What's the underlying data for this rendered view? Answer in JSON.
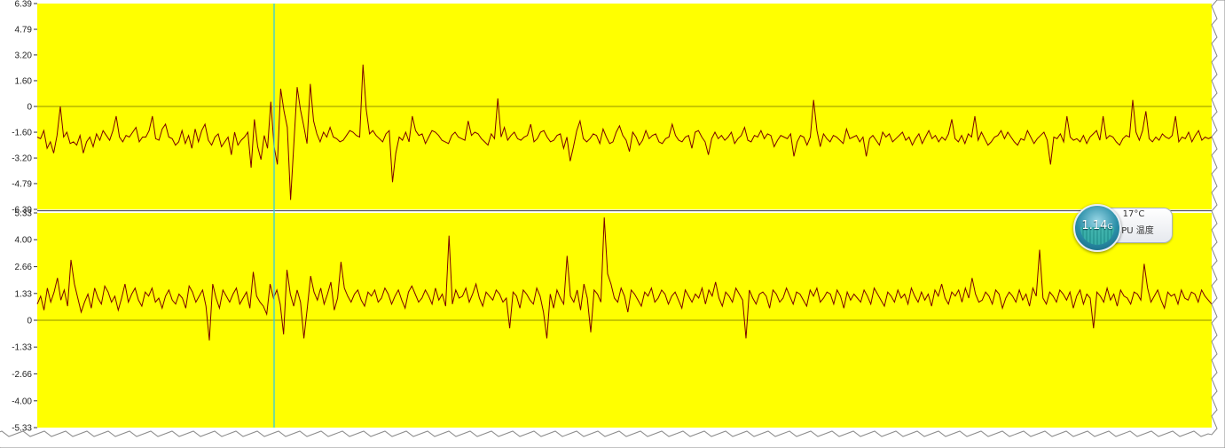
{
  "chart_data": [
    {
      "type": "line",
      "title": "",
      "xlabel": "",
      "ylabel": "",
      "ylim": [
        -6.39,
        6.39
      ],
      "y_ticks": [
        "6.39",
        "4.79",
        "3.20",
        "1.60",
        "0",
        "-1.60",
        "-3.20",
        "-4.79",
        "-6.39"
      ],
      "y_tick_values": [
        6.39,
        4.79,
        3.2,
        1.6,
        0,
        -1.6,
        -3.2,
        -4.79,
        -6.39
      ],
      "background": "#ffff00",
      "line_color": "#7a0000",
      "grid": false,
      "zero_line": true,
      "series": [
        {
          "values": [
            -1.9,
            -2.0,
            -1.5,
            -2.6,
            -2.2,
            -2.9,
            -1.8,
            0,
            -1.9,
            -1.6,
            -2.3,
            -2.2,
            -2.4,
            -1.8,
            -2.9,
            -2.2,
            -1.9,
            -2.5,
            -1.7,
            -2.1,
            -1.5,
            -1.8,
            -2.1,
            -1.5,
            -0.6,
            -1.9,
            -2.2,
            -1.8,
            -1.9,
            -1.6,
            -1.3,
            -2.2,
            -1.9,
            -1.9,
            -1.5,
            -0.6,
            -2.0,
            -2.1,
            -1.4,
            -1.1,
            -1.9,
            -2.0,
            -2.4,
            -2.2,
            -1.5,
            -2.3,
            -1.8,
            -2.6,
            -1.4,
            -2.2,
            -1.5,
            -1.1,
            -2.1,
            -2.4,
            -1.9,
            -1.7,
            -2.5,
            -2.2,
            -1.9,
            -3.0,
            -1.6,
            -2.4,
            -2.1,
            -1.9,
            -1.6,
            -3.8,
            -0.8,
            -2.5,
            -3.3,
            -1.8,
            -2.6,
            0.3,
            -2.5,
            -3.6,
            1.1,
            -0.3,
            -1.3,
            -5.8,
            -2.3,
            1.2,
            -0.2,
            -1.2,
            -2.3,
            1.4,
            -0.9,
            -1.7,
            -2.2,
            -1.6,
            -1.9,
            -1.3,
            -1.9,
            -2.0,
            -2.2,
            -2.1,
            -1.8,
            -1.5,
            -1.6,
            -1.8,
            -1.9,
            2.6,
            -0.2,
            -1.7,
            -1.5,
            -1.8,
            -2.0,
            -2.2,
            -1.7,
            -1.5,
            -4.7,
            -2.9,
            -1.9,
            -2.1,
            -1.6,
            -2.2,
            -0.6,
            -1.5,
            -1.8,
            -1.7,
            -2.3,
            -1.9,
            -1.5,
            -1.6,
            -1.8,
            -2.1,
            -2.2,
            -2.3,
            -1.8,
            -1.6,
            -1.9,
            -2.0,
            -2.1,
            -0.9,
            -1.8,
            -1.6,
            -1.7,
            -2.0,
            -2.2,
            -2.4,
            -1.7,
            -2.0,
            0.5,
            -1.9,
            -1.3,
            -2.1,
            -1.8,
            -1.6,
            -2.0,
            -2.1,
            -1.9,
            -1.8,
            -1.1,
            -2.2,
            -2.0,
            -1.6,
            -1.5,
            -1.9,
            -2.2,
            -2.1,
            -1.8,
            -1.7,
            -2.6,
            -1.9,
            -3.4,
            -2.5,
            -1.5,
            -0.9,
            -2.0,
            -2.2,
            -2.0,
            -1.7,
            -1.8,
            -2.3,
            -1.4,
            -1.9,
            -2.3,
            -2.2,
            -1.6,
            -1.2,
            -1.8,
            -2.1,
            -2.8,
            -1.6,
            -1.9,
            -2.4,
            -2.1,
            -1.5,
            -2.0,
            -1.8,
            -1.7,
            -2.2,
            -2.3,
            -2.0,
            -1.9,
            -1.1,
            -1.8,
            -2.1,
            -2.2,
            -1.9,
            -1.8,
            -2.6,
            -1.6,
            -1.5,
            -1.9,
            -2.2,
            -3.0,
            -2.0,
            -1.6,
            -2.0,
            -1.8,
            -2.1,
            -1.9,
            -1.6,
            -2.3,
            -2.0,
            -1.8,
            -1.3,
            -2.1,
            -2.2,
            -1.8,
            -1.9,
            -1.5,
            -2.0,
            -1.7,
            -1.8,
            -2.5,
            -2.1,
            -1.8,
            -1.9,
            -2.0,
            -1.7,
            -3.1,
            -2.2,
            -1.8,
            -1.9,
            -2.4,
            -1.9,
            0.4,
            -1.5,
            -2.5,
            -1.7,
            -2.0,
            -2.2,
            -1.8,
            -1.9,
            -2.1,
            -2.3,
            -1.4,
            -2.0,
            -1.9,
            -1.8,
            -2.2,
            -1.9,
            -3.1,
            -2.0,
            -1.8,
            -2.1,
            -2.4,
            -1.6,
            -1.9,
            -1.7,
            -2.2,
            -2.0,
            -1.8,
            -1.6,
            -2.1,
            -1.9,
            -2.4,
            -2.0,
            -1.7,
            -2.3,
            -1.9,
            -1.5,
            -2.0,
            -1.8,
            -2.2,
            -1.9,
            -2.1,
            -1.7,
            -0.8,
            -2.0,
            -2.2,
            -1.8,
            -2.3,
            -1.7,
            -1.9,
            -0.6,
            -2.1,
            -1.6,
            -2.0,
            -2.4,
            -2.2,
            -1.9,
            -1.8,
            -1.5,
            -2.0,
            -1.6,
            -1.9,
            -2.2,
            -2.4,
            -2.0,
            -2.1,
            -1.5,
            -1.9,
            -2.3,
            -2.0,
            -1.8,
            -1.6,
            -2.1,
            -3.6,
            -1.9,
            -2.0,
            -1.7,
            -2.2,
            -0.6,
            -1.9,
            -2.1,
            -2.0,
            -2.2,
            -1.8,
            -2.3,
            -1.9,
            -1.7,
            -1.5,
            -2.1,
            -0.6,
            -2.0,
            -1.8,
            -1.9,
            -2.2,
            -2.4,
            -2.0,
            -1.8,
            -1.9,
            0.4,
            -1.6,
            -2.1,
            -1.5,
            -0.3,
            -2.0,
            -2.2,
            -1.9,
            -2.1,
            -1.7,
            -1.9,
            -2.0,
            -1.8,
            -0.6,
            -2.2,
            -1.9,
            -2.0,
            -1.6,
            -2.2,
            -1.8,
            -1.5,
            -2.1,
            -1.9,
            -2.0,
            -1.9
          ],
          "color": "#7a0000"
        }
      ]
    },
    {
      "type": "line",
      "title": "",
      "xlabel": "",
      "ylabel": "",
      "ylim": [
        -5.33,
        5.33
      ],
      "y_ticks": [
        "5.33",
        "4.00",
        "2.66",
        "1.33",
        "0",
        "-1.33",
        "-2.66",
        "-4.00",
        "-5.33"
      ],
      "y_tick_values": [
        5.33,
        4.0,
        2.66,
        1.33,
        0,
        -1.33,
        -2.66,
        -4.0,
        -5.33
      ],
      "background": "#ffff00",
      "line_color": "#7a0000",
      "grid": false,
      "zero_line": true,
      "series": [
        {
          "values": [
            0.8,
            1.2,
            0.5,
            1.6,
            0.9,
            1.4,
            2.1,
            1.0,
            1.5,
            0.7,
            3.0,
            1.8,
            1.1,
            0.4,
            0.9,
            1.3,
            0.6,
            1.6,
            1.1,
            0.8,
            1.7,
            1.4,
            0.9,
            1.2,
            0.5,
            1.1,
            1.8,
            0.9,
            1.3,
            1.6,
            1.0,
            0.7,
            1.4,
            1.2,
            1.6,
            0.9,
            1.1,
            0.6,
            1.2,
            1.5,
            1.0,
            0.8,
            1.3,
            1.1,
            0.6,
            1.7,
            1.4,
            0.9,
            1.2,
            1.5,
            0.7,
            -1.0,
            1.8,
            1.1,
            0.6,
            1.5,
            1.2,
            0.9,
            1.3,
            1.6,
            0.8,
            1.1,
            1.4,
            0.6,
            2.4,
            1.2,
            0.9,
            0.7,
            0.3,
            1.8,
            1.1,
            1.5,
            0.8,
            -0.7,
            2.5,
            1.3,
            0.7,
            1.5,
            0.9,
            -0.9,
            0.6,
            2.2,
            1.4,
            1.0,
            1.6,
            0.8,
            1.3,
            1.9,
            0.5,
            1.1,
            2.9,
            1.6,
            1.2,
            0.9,
            1.3,
            1.5,
            1.0,
            0.7,
            1.4,
            1.2,
            1.5,
            0.9,
            1.1,
            1.6,
            1.3,
            0.8,
            1.2,
            1.5,
            1.0,
            0.6,
            1.4,
            1.7,
            1.3,
            0.9,
            1.1,
            1.5,
            1.2,
            0.8,
            1.6,
            1.0,
            1.3,
            0.7,
            4.2,
            0.8,
            1.5,
            1.1,
            1.2,
            1.6,
            0.9,
            1.3,
            1.8,
            1.1,
            0.7,
            1.4,
            1.2,
            1.0,
            1.5,
            1.3,
            0.9,
            1.1,
            -0.4,
            1.4,
            1.2,
            0.6,
            1.5,
            1.3,
            1.0,
            0.8,
            1.6,
            1.2,
            0.4,
            -0.9,
            1.3,
            0.6,
            1.5,
            1.1,
            0.8,
            3.2,
            1.2,
            0.9,
            1.5,
            0.5,
            1.8,
            1.1,
            -0.6,
            1.5,
            1.3,
            0.9,
            5.1,
            2.3,
            1.8,
            1.1,
            0.9,
            1.6,
            1.2,
            0.4,
            1.5,
            1.3,
            1.0,
            0.7,
            1.4,
            1.2,
            1.6,
            0.9,
            1.1,
            1.5,
            1.3,
            0.8,
            1.2,
            1.4,
            1.0,
            0.6,
            1.5,
            1.2,
            0.9,
            1.3,
            1.1,
            1.6,
            0.8,
            1.5,
            1.2,
            1.9,
            1.1,
            0.7,
            1.4,
            1.2,
            0.9,
            1.6,
            1.3,
            1.0,
            -0.9,
            1.5,
            1.1,
            0.8,
            1.3,
            1.4,
            1.2,
            0.6,
            1.5,
            1.3,
            0.9,
            1.1,
            1.6,
            1.2,
            0.8,
            1.4,
            1.3,
            1.0,
            0.7,
            1.5,
            1.2,
            1.6,
            0.9,
            1.1,
            1.4,
            1.3,
            0.8,
            1.5,
            1.2,
            0.6,
            1.4,
            1.0,
            1.3,
            1.1,
            0.9,
            1.5,
            1.2,
            0.8,
            1.6,
            1.3,
            1.0,
            0.7,
            1.4,
            1.2,
            0.9,
            1.5,
            1.1,
            1.3,
            0.8,
            1.6,
            1.2,
            0.9,
            1.4,
            1.0,
            1.3,
            0.7,
            1.5,
            1.2,
            1.8,
            1.1,
            0.8,
            1.4,
            1.2,
            1.5,
            0.9,
            1.6,
            1.1,
            2.1,
            1.3,
            0.9,
            1.0,
            1.4,
            1.2,
            0.8,
            1.5,
            1.3,
            0.6,
            1.1,
            1.4,
            1.2,
            0.9,
            1.5,
            1.0,
            1.3,
            0.7,
            1.6,
            1.2,
            3.5,
            1.1,
            0.8,
            1.4,
            1.2,
            0.9,
            1.5,
            1.3,
            1.0,
            1.4,
            0.6,
            1.2,
            1.5,
            0.8,
            1.3,
            1.1,
            -0.4,
            1.4,
            1.2,
            0.9,
            1.6,
            1.0,
            1.3,
            0.7,
            1.5,
            1.2,
            1.1,
            0.8,
            1.4,
            1.3,
            1.0,
            2.8,
            1.6,
            0.9,
            1.2,
            1.5,
            1.0,
            0.6,
            1.4,
            1.2,
            1.3,
            0.8,
            1.5,
            1.1,
            1.0,
            1.4,
            1.3,
            0.9,
            1.5,
            1.2,
            1.0,
            0.8
          ],
          "color": "#7a0000"
        }
      ]
    }
  ],
  "cursor": {
    "color": "#33ccdd"
  },
  "widget": {
    "memory": "1.14",
    "memory_unit": "G",
    "temperature": "17°C",
    "label": "CPU 温度"
  }
}
